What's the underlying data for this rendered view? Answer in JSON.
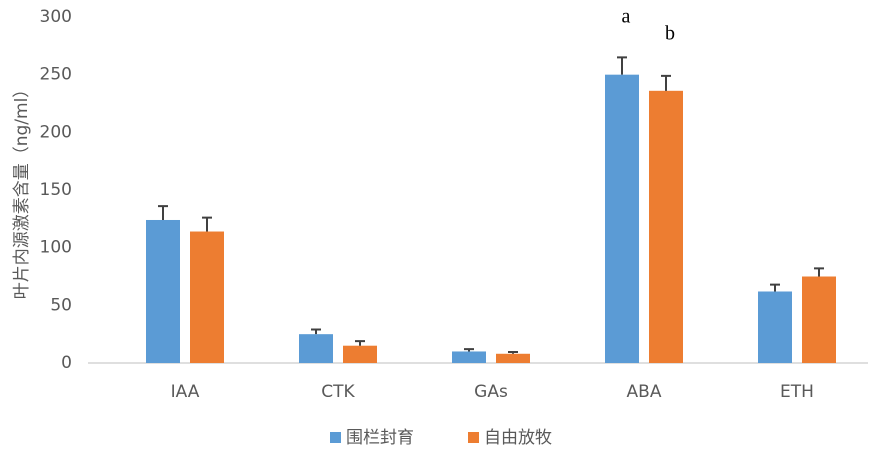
{
  "chart_data": {
    "type": "bar",
    "y_label": "叶片内源激素含量（ng/ml）",
    "categories": [
      "IAA",
      "CTK",
      "GAs",
      "ABA",
      "ETH"
    ],
    "series": [
      {
        "name": "围栏封育",
        "color": "#5b9bd5",
        "values": [
          124,
          25,
          10,
          250,
          62
        ],
        "errors": [
          12,
          4,
          2,
          15,
          6
        ]
      },
      {
        "name": "自由放牧",
        "color": "#ed7d31",
        "values": [
          114,
          15,
          8,
          236,
          75
        ],
        "errors": [
          12,
          4,
          1.5,
          13,
          7
        ]
      }
    ],
    "annotations": [
      "a",
      "b"
    ],
    "ylim": [
      0,
      300
    ],
    "yticks": [
      0,
      50,
      100,
      150,
      200,
      250,
      300
    ],
    "grid": false
  }
}
